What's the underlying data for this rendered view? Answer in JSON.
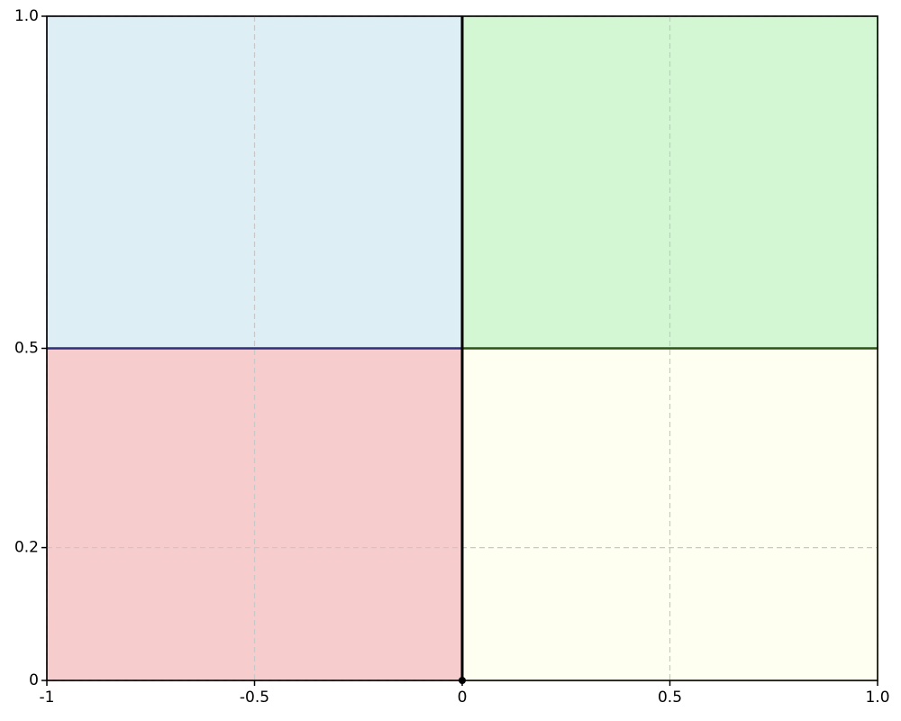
{
  "chart_data": {
    "type": "regions",
    "xlim": [
      -1,
      1
    ],
    "ylim": [
      0,
      1
    ],
    "xticks": [
      -1,
      -0.5,
      0,
      0.5,
      {
        "value": 1,
        "label": "1.0"
      }
    ],
    "yticks": [
      0,
      0.2,
      0.5,
      {
        "value": 1,
        "label": "1.0"
      }
    ],
    "grid": true,
    "regions": [
      {
        "x": [
          -1,
          0
        ],
        "y": [
          0.5,
          1
        ],
        "color": "#deeef5",
        "edge": "#2e2e7a"
      },
      {
        "x": [
          0,
          1
        ],
        "y": [
          0.5,
          1
        ],
        "color": "#d2f7d2",
        "edge": "#2f5216"
      },
      {
        "x": [
          -1,
          0
        ],
        "y": [
          0,
          0.5
        ],
        "color": "#f7cccc",
        "edge": "#7a1f1f"
      },
      {
        "x": [
          0,
          1
        ],
        "y": [
          0,
          0.5
        ],
        "color": "#fefff0",
        "edge": "#8a7a20"
      }
    ],
    "vline": {
      "x": 0,
      "color": "#000000"
    },
    "point": {
      "x": 0,
      "y": 0,
      "color": "#000000"
    }
  }
}
